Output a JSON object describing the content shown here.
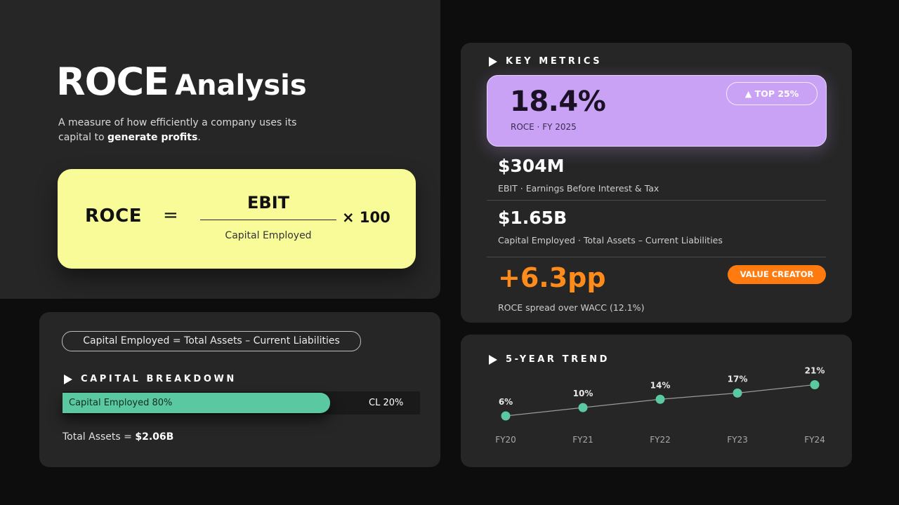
{
  "hero": {
    "title_main": "ROCE",
    "title_rest": "Analysis",
    "subtitle_pre": "A measure of how efficiently a company uses its capital to ",
    "subtitle_bold": "generate profits",
    "subtitle_post": "."
  },
  "formula": {
    "lhs": "ROCE",
    "equals": "=",
    "numerator": "EBIT",
    "denominator": "Capital Employed",
    "multiplier": "× 100"
  },
  "capital": {
    "definition": "Capital Employed  =  Total Assets  –  Current Liabilities",
    "section_title": "CAPITAL BREAKDOWN",
    "ce_label": "Capital Employed  80%",
    "ce_share": 0.8,
    "cl_label": "CL  20%",
    "total_label": "Total Assets  = ",
    "total_value": "$2.06B",
    "bar_color": "#5ac8a0"
  },
  "metrics": {
    "section_title": "KEY METRICS",
    "roce_value": "18.4%",
    "roce_sub": "ROCE  ·  FY 2025",
    "rank_badge": "▲ TOP 25%",
    "ebit_value": "$304M",
    "ebit_label": "EBIT  ·  Earnings Before Interest & Tax",
    "ce_value": "$1.65B",
    "ce_label": "Capital Employed  ·  Total Assets – Current Liabilities",
    "spread_value": "+6.3pp",
    "spread_label": "ROCE spread over WACC (12.1%)",
    "status_badge": "VALUE CREATOR",
    "accent_purple": "#c9a2f6",
    "accent_orange": "#ff8c1a"
  },
  "trend": {
    "section_title": "5-YEAR TREND"
  },
  "chart_data": {
    "type": "line",
    "categories": [
      "FY20",
      "FY21",
      "FY22",
      "FY23",
      "FY24"
    ],
    "values": [
      6,
      10,
      14,
      17,
      21
    ],
    "data_labels": [
      "6%",
      "10%",
      "14%",
      "17%",
      "21%"
    ],
    "title": "5-YEAR TREND",
    "marker_color": "#5ac8a0",
    "line_color": "#9a9a9a"
  }
}
